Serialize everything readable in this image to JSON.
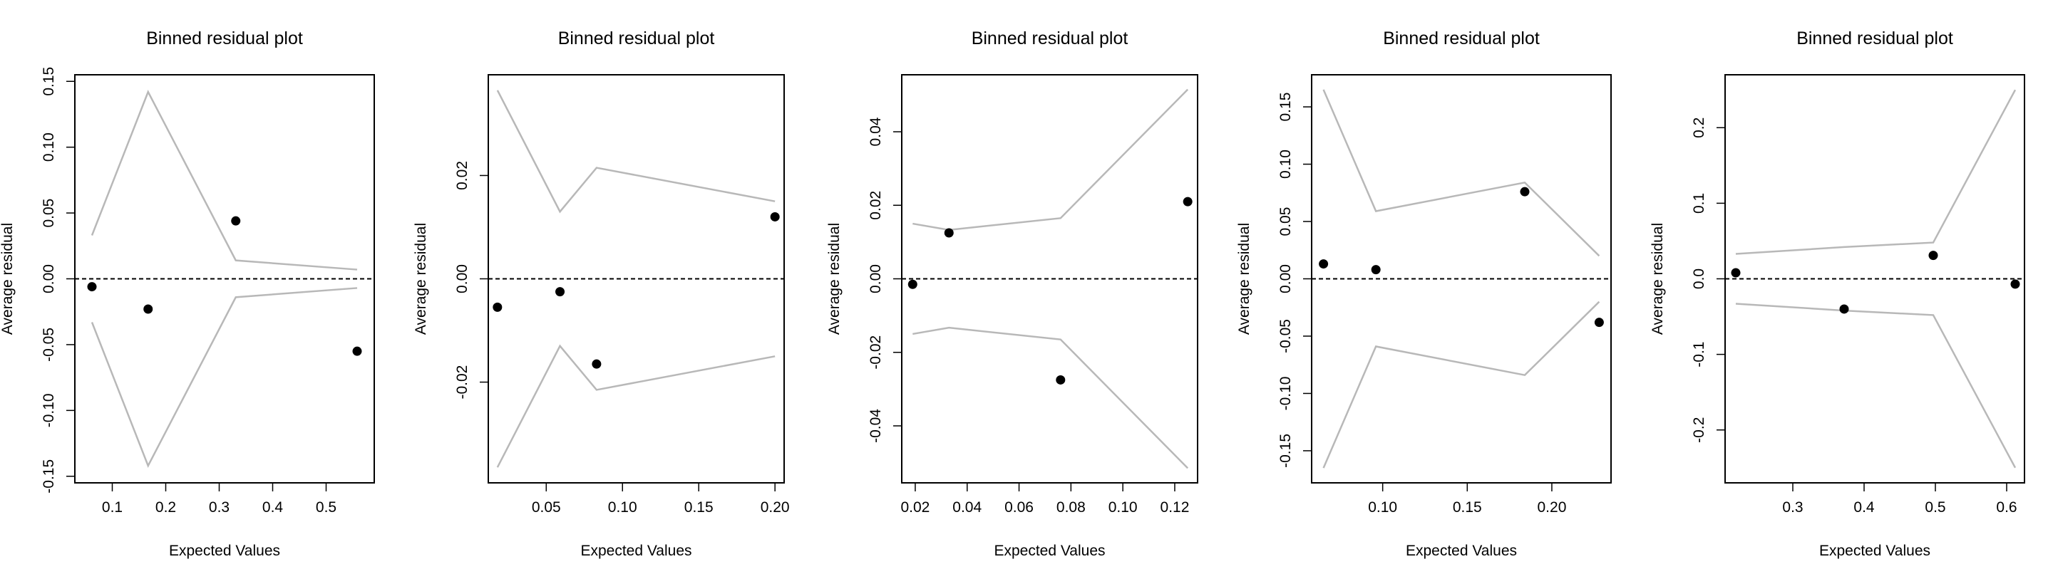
{
  "chart_data": [
    {
      "type": "scatter",
      "title": "Binned residual plot",
      "xlabel": "Expected Values",
      "ylabel": "Average residual",
      "xlim": [
        0.03,
        0.59
      ],
      "ylim": [
        -0.155,
        0.155
      ],
      "xticks": [
        0.1,
        0.2,
        0.3,
        0.4,
        0.5
      ],
      "xtick_labels": [
        "0.1",
        "0.2",
        "0.3",
        "0.4",
        "0.5"
      ],
      "yticks": [
        -0.15,
        -0.1,
        -0.05,
        0,
        0.05,
        0.1,
        0.15
      ],
      "ytick_labels": [
        "-0.15",
        "-0.10",
        "-0.05",
        "0.00",
        "0.05",
        "0.10",
        "0.15"
      ],
      "points": {
        "x": [
          0.062,
          0.167,
          0.331,
          0.558
        ],
        "y": [
          -0.006,
          -0.023,
          0.044,
          -0.055
        ]
      },
      "bounds": {
        "x": [
          0.062,
          0.167,
          0.331,
          0.558
        ],
        "upper": [
          0.033,
          0.142,
          0.014,
          0.007
        ]
      },
      "reference_line": 0
    },
    {
      "type": "scatter",
      "title": "Binned residual plot",
      "xlabel": "Expected Values",
      "ylabel": "Average residual",
      "xlim": [
        0.012,
        0.206
      ],
      "ylim": [
        -0.0395,
        0.0395
      ],
      "xticks": [
        0.05,
        0.1,
        0.15,
        0.2
      ],
      "xtick_labels": [
        "0.05",
        "0.10",
        "0.15",
        "0.20"
      ],
      "yticks": [
        -0.02,
        0,
        0.02
      ],
      "ytick_labels": [
        "-0.02",
        "0.00",
        "0.02"
      ],
      "points": {
        "x": [
          0.018,
          0.059,
          0.083,
          0.2
        ],
        "y": [
          -0.0055,
          -0.0025,
          -0.0165,
          0.012
        ]
      },
      "bounds": {
        "x": [
          0.018,
          0.059,
          0.083,
          0.2
        ],
        "upper": [
          0.0365,
          0.013,
          0.0215,
          0.015
        ]
      },
      "reference_line": 0
    },
    {
      "type": "scatter",
      "title": "Binned residual plot",
      "xlabel": "Expected Values",
      "ylabel": "Average residual",
      "xlim": [
        0.0148,
        0.1288
      ],
      "ylim": [
        -0.0555,
        0.0555
      ],
      "xticks": [
        0.02,
        0.04,
        0.06,
        0.08,
        0.1,
        0.12
      ],
      "xtick_labels": [
        "0.02",
        "0.04",
        "0.06",
        "0.08",
        "0.10",
        "0.12"
      ],
      "yticks": [
        -0.04,
        -0.02,
        0,
        0.02,
        0.04
      ],
      "ytick_labels": [
        "-0.04",
        "-0.02",
        "0.00",
        "0.02",
        "0.04"
      ],
      "points": {
        "x": [
          0.019,
          0.033,
          0.076,
          0.125
        ],
        "y": [
          -0.0015,
          0.0125,
          -0.0275,
          0.021
        ]
      },
      "bounds": {
        "x": [
          0.019,
          0.033,
          0.076,
          0.125
        ],
        "upper": [
          0.015,
          0.0133,
          0.0165,
          0.0515
        ]
      },
      "reference_line": 0
    },
    {
      "type": "scatter",
      "title": "Binned residual plot",
      "xlabel": "Expected Values",
      "ylabel": "Average residual",
      "xlim": [
        0.058,
        0.235
      ],
      "ylim": [
        -0.178,
        0.178
      ],
      "xticks": [
        0.1,
        0.15,
        0.2
      ],
      "xtick_labels": [
        "0.10",
        "0.15",
        "0.20"
      ],
      "yticks": [
        -0.15,
        -0.1,
        -0.05,
        0,
        0.05,
        0.1,
        0.15
      ],
      "ytick_labels": [
        "-0.15",
        "-0.10",
        "-0.05",
        "0.00",
        "0.05",
        "0.10",
        "0.15"
      ],
      "points": {
        "x": [
          0.065,
          0.096,
          0.184,
          0.228
        ],
        "y": [
          0.013,
          0.008,
          0.076,
          -0.038
        ]
      },
      "bounds": {
        "x": [
          0.065,
          0.096,
          0.184,
          0.228
        ],
        "upper": [
          0.165,
          0.059,
          0.084,
          0.02
        ]
      },
      "reference_line": 0
    },
    {
      "type": "scatter",
      "title": "Binned residual plot",
      "xlabel": "Expected Values",
      "ylabel": "Average residual",
      "xlim": [
        0.205,
        0.625
      ],
      "ylim": [
        -0.27,
        0.27
      ],
      "xticks": [
        0.3,
        0.4,
        0.5,
        0.6
      ],
      "xtick_labels": [
        "0.3",
        "0.4",
        "0.5",
        "0.6"
      ],
      "yticks": [
        -0.2,
        -0.1,
        0,
        0.1,
        0.2
      ],
      "ytick_labels": [
        "-0.2",
        "-0.1",
        "0.0",
        "0.1",
        "0.2"
      ],
      "points": {
        "x": [
          0.22,
          0.372,
          0.497,
          0.612
        ],
        "y": [
          0.008,
          -0.04,
          0.031,
          -0.007
        ]
      },
      "bounds": {
        "x": [
          0.22,
          0.372,
          0.497,
          0.612
        ],
        "upper": [
          0.033,
          0.042,
          0.048,
          0.25
        ]
      },
      "reference_line": 0
    }
  ],
  "colors": {
    "points": "#000000",
    "bounds": "#b8b8b8",
    "reference_line": "#000000",
    "frame": "#000000"
  }
}
